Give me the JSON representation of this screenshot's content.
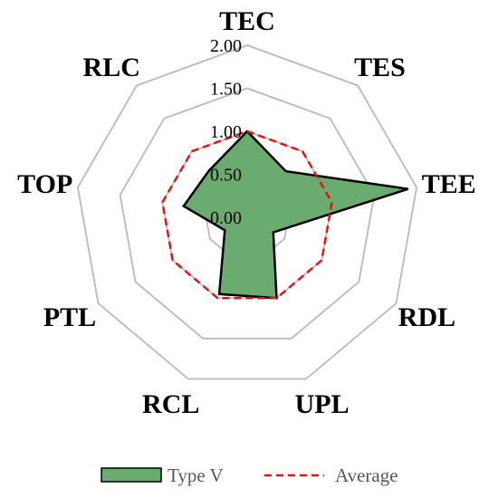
{
  "chart_data": {
    "type": "radar",
    "axes": [
      "TEC",
      "TES",
      "TEE",
      "RDL",
      "UPL",
      "RCL",
      "PTL",
      "TOP",
      "RLC"
    ],
    "rlim": [
      0,
      2.0
    ],
    "ticks": [
      "0.00",
      "0.50",
      "1.00",
      "1.50",
      "2.00"
    ],
    "tick_values": [
      0,
      0.5,
      1.0,
      1.5,
      2.0
    ],
    "grid": true,
    "legend_position": "bottom",
    "series": [
      {
        "name": "Type V",
        "values": [
          1.0,
          0.7,
          1.9,
          0.35,
          1.0,
          0.95,
          0.3,
          0.75,
          0.7
        ],
        "color": "#6aab6f",
        "edge_color": "#000000"
      },
      {
        "name": "Average",
        "values": [
          1.0,
          1.0,
          1.0,
          1.0,
          1.0,
          1.0,
          1.0,
          1.0,
          1.0
        ],
        "color": "#e3140f",
        "line_style": "dashed"
      }
    ]
  }
}
